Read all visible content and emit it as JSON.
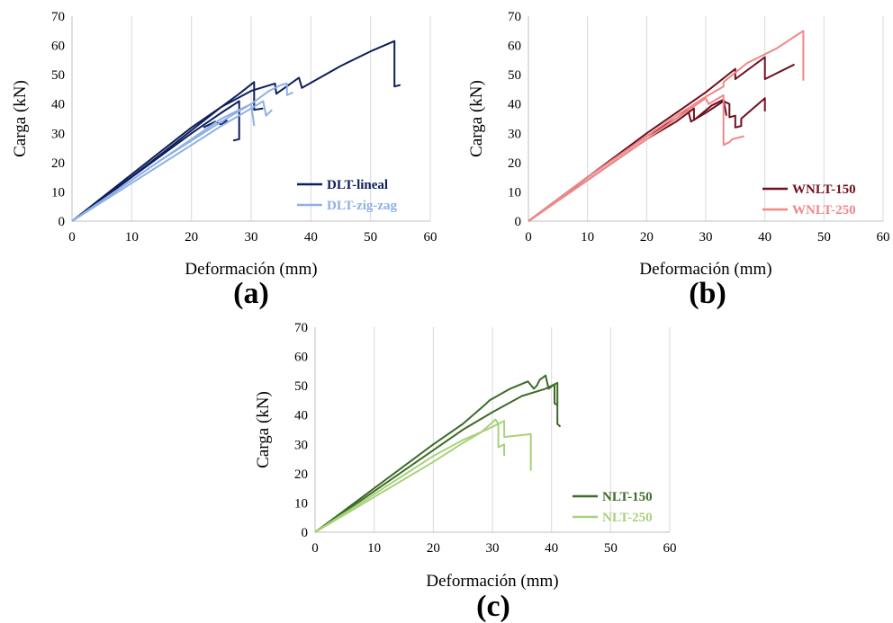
{
  "chart_data": [
    {
      "type": "line",
      "panel_label": "(a)",
      "xlabel": "Deformación (mm)",
      "ylabel": "Carga (kN)",
      "xlim": [
        0,
        60
      ],
      "ylim": [
        0,
        70
      ],
      "xticks": [
        "0",
        "10",
        "20",
        "30",
        "40",
        "50",
        "60"
      ],
      "yticks": [
        "0",
        "10",
        "20",
        "30",
        "40",
        "50",
        "60",
        "70"
      ],
      "grid": "vertical",
      "legend_position": "bottom-right",
      "series": [
        {
          "name": "DLT-lineal",
          "color": "#0d1f5c",
          "curves": [
            [
              [
                0,
                0
              ],
              [
                5,
                7.5
              ],
              [
                10,
                15
              ],
              [
                15,
                22.5
              ],
              [
                20,
                30
              ],
              [
                25,
                37
              ],
              [
                28,
                41
              ],
              [
                28,
                28
              ],
              [
                27,
                27.5
              ]
            ],
            [
              [
                0,
                0
              ],
              [
                5,
                7.5
              ],
              [
                10,
                15.2
              ],
              [
                15,
                23
              ],
              [
                20,
                31
              ],
              [
                25,
                39
              ],
              [
                28,
                43.5
              ],
              [
                30.5,
                47.5
              ],
              [
                30.5,
                38
              ],
              [
                32,
                38.5
              ]
            ],
            [
              [
                0,
                0
              ],
              [
                5,
                8
              ],
              [
                10,
                16
              ],
              [
                15,
                24
              ],
              [
                20,
                32
              ],
              [
                25,
                39
              ],
              [
                30,
                44.5
              ],
              [
                34,
                47
              ],
              [
                34.2,
                43.5
              ],
              [
                38,
                49
              ],
              [
                38.5,
                45.5
              ],
              [
                45,
                53
              ],
              [
                50,
                58
              ],
              [
                54,
                61.5
              ],
              [
                54,
                46
              ],
              [
                55,
                46.5
              ]
            ],
            [
              [
                22,
                32
              ],
              [
                24,
                34
              ],
              [
                25,
                33
              ],
              [
                26,
                34.5
              ]
            ]
          ]
        },
        {
          "name": "DLT-zig-zag",
          "color": "#8fb0e6",
          "curves": [
            [
              [
                0,
                0
              ],
              [
                5,
                7
              ],
              [
                10,
                14
              ],
              [
                15,
                21
              ],
              [
                20,
                28
              ],
              [
                25,
                35
              ],
              [
                30,
                40
              ],
              [
                30.5,
                32.5
              ]
            ],
            [
              [
                0,
                0
              ],
              [
                5,
                7
              ],
              [
                10,
                14
              ],
              [
                15,
                21
              ],
              [
                20,
                27.5
              ],
              [
                25,
                34
              ],
              [
                30,
                40
              ],
              [
                33,
                44.5
              ],
              [
                35,
                46.5
              ],
              [
                36,
                47
              ],
              [
                36,
                43
              ],
              [
                37,
                44
              ]
            ],
            [
              [
                0,
                0
              ],
              [
                5,
                6.5
              ],
              [
                10,
                13
              ],
              [
                15,
                19.5
              ],
              [
                20,
                26
              ],
              [
                25,
                32.5
              ],
              [
                30,
                38.5
              ],
              [
                32,
                41
              ],
              [
                32.5,
                36
              ],
              [
                33.5,
                38
              ]
            ]
          ]
        }
      ]
    },
    {
      "type": "line",
      "panel_label": "(b)",
      "xlabel": "Deformación (mm)",
      "ylabel": "Carga (kN)",
      "xlim": [
        0,
        60
      ],
      "ylim": [
        0,
        70
      ],
      "xticks": [
        "0",
        "10",
        "20",
        "30",
        "40",
        "50",
        "60"
      ],
      "yticks": [
        "0",
        "10",
        "20",
        "30",
        "40",
        "50",
        "60",
        "70"
      ],
      "grid": "vertical",
      "legend_position": "bottom-right",
      "series": [
        {
          "name": "WNLT-150",
          "color": "#6e1020",
          "curves": [
            [
              [
                0,
                0
              ],
              [
                5,
                7.5
              ],
              [
                10,
                15
              ],
              [
                15,
                22.5
              ],
              [
                20,
                30
              ],
              [
                25,
                37
              ],
              [
                30,
                44
              ],
              [
                35,
                52
              ],
              [
                35,
                48.5
              ],
              [
                40,
                56
              ],
              [
                40,
                48.5
              ],
              [
                45,
                53.5
              ]
            ],
            [
              [
                0,
                0
              ],
              [
                5,
                7.5
              ],
              [
                10,
                15
              ],
              [
                15,
                22
              ],
              [
                20,
                29
              ],
              [
                25,
                35
              ],
              [
                27,
                38
              ],
              [
                27.5,
                34
              ],
              [
                30,
                37
              ],
              [
                33,
                41
              ],
              [
                34,
                40
              ],
              [
                34,
                35.5
              ],
              [
                35,
                36
              ],
              [
                35,
                32
              ],
              [
                36,
                32.5
              ],
              [
                36,
                35
              ],
              [
                40,
                42
              ],
              [
                40,
                37.5
              ]
            ],
            [
              [
                0,
                0
              ],
              [
                5,
                7
              ],
              [
                10,
                14
              ],
              [
                15,
                21
              ],
              [
                20,
                28
              ],
              [
                25,
                34
              ],
              [
                28,
                38.5
              ],
              [
                28,
                34.5
              ],
              [
                31,
                39.5
              ],
              [
                33,
                41.5
              ],
              [
                33.5,
                36
              ]
            ]
          ]
        },
        {
          "name": "WNLT-250",
          "color": "#f08888",
          "curves": [
            [
              [
                0,
                0
              ],
              [
                5,
                7
              ],
              [
                10,
                14
              ],
              [
                15,
                21
              ],
              [
                20,
                28
              ],
              [
                25,
                35
              ],
              [
                30,
                42
              ],
              [
                30.5,
                40
              ],
              [
                33,
                43
              ],
              [
                33,
                26
              ],
              [
                34,
                27
              ],
              [
                34.5,
                28
              ],
              [
                36.5,
                29
              ]
            ],
            [
              [
                0,
                0
              ],
              [
                5,
                7.5
              ],
              [
                10,
                15
              ],
              [
                15,
                22
              ],
              [
                20,
                29
              ],
              [
                25,
                36
              ],
              [
                30,
                42.5
              ],
              [
                33,
                46
              ],
              [
                33,
                47.5
              ],
              [
                37,
                54
              ],
              [
                42,
                59
              ],
              [
                46.5,
                65
              ],
              [
                46.5,
                48
              ]
            ]
          ]
        }
      ]
    },
    {
      "type": "line",
      "panel_label": "(c)",
      "xlabel": "Deformación (mm)",
      "ylabel": "Carga (kN)",
      "xlim": [
        0,
        60
      ],
      "ylim": [
        0,
        70
      ],
      "xticks": [
        "0",
        "10",
        "20",
        "30",
        "40",
        "50",
        "60"
      ],
      "yticks": [
        "0",
        "10",
        "20",
        "30",
        "40",
        "50",
        "60",
        "70"
      ],
      "grid": "vertical",
      "legend_position": "bottom-right",
      "series": [
        {
          "name": "NLT-150",
          "color": "#3d6b28",
          "curves": [
            [
              [
                0,
                0
              ],
              [
                5,
                7
              ],
              [
                10,
                14
              ],
              [
                15,
                21
              ],
              [
                20,
                28
              ],
              [
                25,
                35
              ],
              [
                30,
                41
              ],
              [
                35,
                46.5
              ],
              [
                39,
                49
              ],
              [
                41,
                51
              ],
              [
                41,
                37
              ],
              [
                41.5,
                36
              ]
            ],
            [
              [
                0,
                0
              ],
              [
                5,
                7.5
              ],
              [
                10,
                15
              ],
              [
                15,
                22.5
              ],
              [
                20,
                30
              ],
              [
                25,
                37
              ],
              [
                29,
                44
              ],
              [
                29.5,
                45
              ],
              [
                33,
                49
              ],
              [
                36,
                51.5
              ],
              [
                37,
                49
              ],
              [
                37.5,
                50
              ],
              [
                38,
                52
              ],
              [
                39,
                53.5
              ],
              [
                39.5,
                49
              ],
              [
                40.5,
                50.5
              ],
              [
                40.5,
                44
              ],
              [
                41,
                43.5
              ]
            ]
          ]
        },
        {
          "name": "NLT-250",
          "color": "#a9d17c",
          "curves": [
            [
              [
                0,
                0
              ],
              [
                5,
                6
              ],
              [
                10,
                12
              ],
              [
                15,
                18
              ],
              [
                20,
                24
              ],
              [
                25,
                30.5
              ],
              [
                28,
                34
              ],
              [
                30,
                37.5
              ],
              [
                30.5,
                38.5
              ],
              [
                31,
                37
              ],
              [
                31,
                29
              ],
              [
                32,
                30
              ],
              [
                32,
                26
              ]
            ],
            [
              [
                0,
                0
              ],
              [
                5,
                6.5
              ],
              [
                10,
                13
              ],
              [
                15,
                19.5
              ],
              [
                20,
                26
              ],
              [
                25,
                31.5
              ],
              [
                29,
                35
              ],
              [
                31.5,
                37.5
              ],
              [
                32,
                38
              ],
              [
                32,
                32.5
              ],
              [
                36.5,
                33.5
              ],
              [
                36.5,
                21
              ]
            ]
          ]
        }
      ]
    }
  ]
}
